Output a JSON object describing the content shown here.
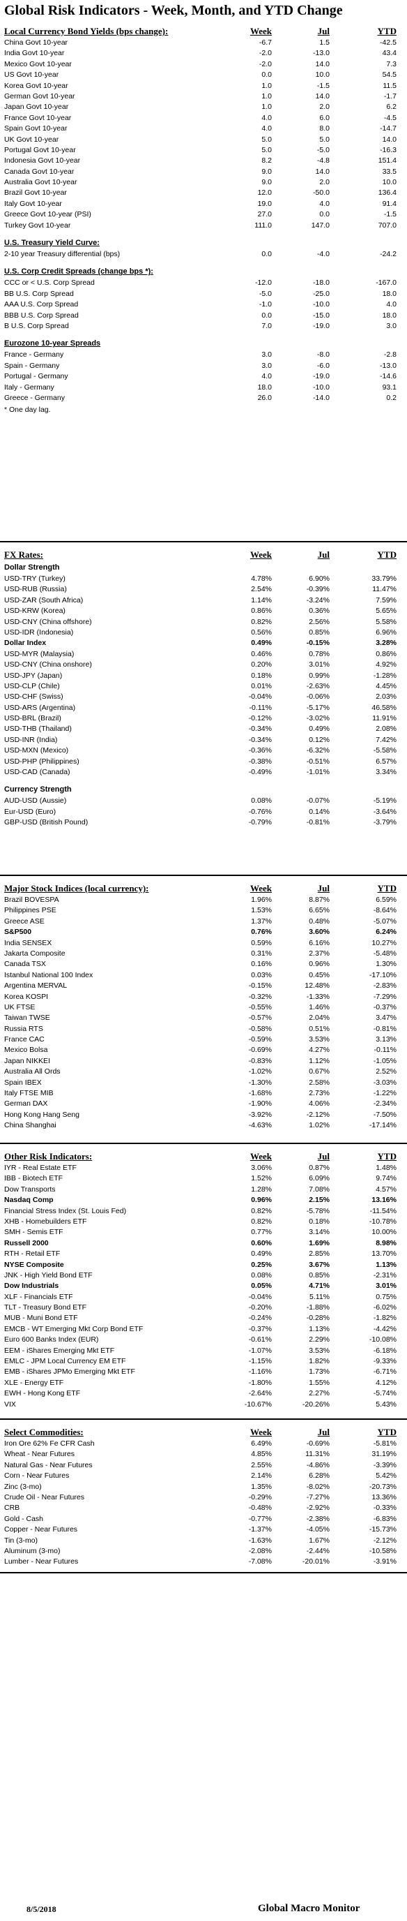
{
  "title": "Global Risk Indicators - Week, Month, and YTD Change",
  "columns": {
    "week": "Week",
    "jul": "Jul",
    "ytd": "YTD"
  },
  "bonds": {
    "heading": "Local Currency Bond Yields (bps change):",
    "rows": [
      [
        "China Govt 10-year",
        "-6.7",
        "1.5",
        "-42.5"
      ],
      [
        "India Govt 10-year",
        "-2.0",
        "-13.0",
        "43.4"
      ],
      [
        "Mexico Govt 10-year",
        "-2.0",
        "14.0",
        "7.3"
      ],
      [
        "US Govt 10-year",
        "0.0",
        "10.0",
        "54.5"
      ],
      [
        "Korea Govt 10-year",
        "1.0",
        "-1.5",
        "11.5"
      ],
      [
        "German Govt 10-year",
        "1.0",
        "14.0",
        "-1.7"
      ],
      [
        "Japan Govt 10-year",
        "1.0",
        "2.0",
        "6.2"
      ],
      [
        "France Govt 10-year",
        "4.0",
        "6.0",
        "-4.5"
      ],
      [
        "Spain Govt 10-year",
        "4.0",
        "8.0",
        "-14.7"
      ],
      [
        "UK Govt 10-year",
        "5.0",
        "5.0",
        "14.0"
      ],
      [
        "Portugal Govt 10-year",
        "5.0",
        "-5.0",
        "-16.3"
      ],
      [
        "Indonesia Govt 10-year",
        "8.2",
        "-4.8",
        "151.4"
      ],
      [
        "Canada Govt 10-year",
        "9.0",
        "14.0",
        "33.5"
      ],
      [
        "Australia Govt 10-year",
        "9.0",
        "2.0",
        "10.0"
      ],
      [
        "Brazil Govt 10-year",
        "12.0",
        "-50.0",
        "136.4"
      ],
      [
        "Italy Govt 10-year",
        "19.0",
        "4.0",
        "91.4"
      ],
      [
        "Greece Govt 10-year (PSI)",
        "27.0",
        "0.0",
        "-1.5"
      ],
      [
        "Turkey Govt 10-year",
        "111.0",
        "147.0",
        "707.0"
      ]
    ]
  },
  "curve": {
    "heading": "U.S. Treasury Yield Curve:",
    "rows": [
      [
        "2-10 year Treasury differential (bps)",
        "0.0",
        "-4.0",
        "-24.2"
      ]
    ]
  },
  "credit": {
    "heading": "U.S. Corp Credit Spreads (change bps *):",
    "rows": [
      [
        "CCC or < U.S. Corp Spread",
        "-12.0",
        "-18.0",
        "-167.0"
      ],
      [
        "BB U.S. Corp Spread",
        "-5.0",
        "-25.0",
        "18.0"
      ],
      [
        "AAA U.S. Corp Spread",
        "-1.0",
        "-10.0",
        "4.0"
      ],
      [
        "BBB U.S. Corp Spread",
        "0.0",
        "-15.0",
        "18.0"
      ],
      [
        "B U.S. Corp Spread",
        "7.0",
        "-19.0",
        "3.0"
      ]
    ]
  },
  "eurozone": {
    "heading": "Eurozone 10-year Spreads",
    "rows": [
      [
        "France - Germany",
        "3.0",
        "-8.0",
        "-2.8"
      ],
      [
        "Spain - Germany",
        "3.0",
        "-6.0",
        "-13.0"
      ],
      [
        "Portugal - Germany",
        "4.0",
        "-19.0",
        "-14.6"
      ],
      [
        "Italy - Germany",
        "18.0",
        "-10.0",
        "93.1"
      ],
      [
        "Greece - Germany",
        "26.0",
        "-14.0",
        "0.2"
      ]
    ],
    "note": "* One day lag."
  },
  "fx": {
    "heading": "FX Rates:",
    "strength_heading": "Dollar Strength",
    "rows": [
      [
        "USD-TRY (Turkey)",
        "4.78%",
        "6.90%",
        "33.79%",
        false
      ],
      [
        "USD-RUB (Russia)",
        "2.54%",
        "-0.39%",
        "11.47%",
        false
      ],
      [
        "USD-ZAR (South Africa)",
        "1.14%",
        "-3.24%",
        "7.59%",
        false
      ],
      [
        "USD-KRW (Korea)",
        "0.86%",
        "0.36%",
        "5.65%",
        false
      ],
      [
        "USD-CNY (China offshore)",
        "0.82%",
        "2.56%",
        "5.58%",
        false
      ],
      [
        "USD-IDR (Indonesia)",
        "0.56%",
        "0.85%",
        "6.96%",
        false
      ],
      [
        "Dollar Index",
        "0.49%",
        "-0.15%",
        "3.28%",
        true
      ],
      [
        "USD-MYR (Malaysia)",
        "0.46%",
        "0.78%",
        "0.86%",
        false
      ],
      [
        "USD-CNY (China onshore)",
        "0.20%",
        "3.01%",
        "4.92%",
        false
      ],
      [
        "USD-JPY (Japan)",
        "0.18%",
        "0.99%",
        "-1.28%",
        false
      ],
      [
        "USD-CLP (Chile)",
        "0.01%",
        "-2.63%",
        "4.45%",
        false
      ],
      [
        "USD-CHF (Swiss)",
        "-0.04%",
        "-0.06%",
        "2.03%",
        false
      ],
      [
        "USD-ARS (Argentina)",
        "-0.11%",
        "-5.17%",
        "46.58%",
        false
      ],
      [
        "USD-BRL (Brazil)",
        "-0.12%",
        "-3.02%",
        "11.91%",
        false
      ],
      [
        "USD-THB (Thailand)",
        "-0.34%",
        "0.49%",
        "2.08%",
        false
      ],
      [
        "USD-INR (India)",
        "-0.34%",
        "0.12%",
        "7.42%",
        false
      ],
      [
        "USD-MXN  (Mexico)",
        "-0.36%",
        "-6.32%",
        "-5.58%",
        false
      ],
      [
        "USD-PHP (Philippines)",
        "-0.38%",
        "-0.51%",
        "6.57%",
        false
      ],
      [
        "USD-CAD (Canada)",
        "-0.49%",
        "-1.01%",
        "3.34%",
        false
      ]
    ],
    "currency_heading": "Currency Strength",
    "currency_rows": [
      [
        "AUD-USD (Aussie)",
        "0.08%",
        "-0.07%",
        "-5.19%",
        false
      ],
      [
        "Eur-USD (Euro)",
        "-0.76%",
        "0.14%",
        "-3.64%",
        false
      ],
      [
        "GBP-USD (British Pound)",
        "-0.79%",
        "-0.81%",
        "-3.79%",
        false
      ]
    ]
  },
  "stocks": {
    "heading": "Major Stock Indices (local currency):",
    "rows": [
      [
        "Brazil BOVESPA",
        "1.96%",
        "8.87%",
        "6.59%",
        false
      ],
      [
        "Philippines PSE",
        "1.53%",
        "6.65%",
        "-8.64%",
        false
      ],
      [
        "Greece ASE",
        "1.37%",
        "0.48%",
        "-5.07%",
        false
      ],
      [
        "S&P500",
        "0.76%",
        "3.60%",
        "6.24%",
        true
      ],
      [
        "India SENSEX",
        "0.59%",
        "6.16%",
        "10.27%",
        false
      ],
      [
        "Jakarta Composite",
        "0.31%",
        "2.37%",
        "-5.48%",
        false
      ],
      [
        "Canada TSX",
        "0.16%",
        "0.96%",
        "1.30%",
        false
      ],
      [
        "Istanbul National 100 Index",
        "0.03%",
        "0.45%",
        "-17.10%",
        false
      ],
      [
        "Argentina MERVAL",
        "-0.15%",
        "12.48%",
        "-2.83%",
        false
      ],
      [
        "Korea KOSPI",
        "-0.32%",
        "-1.33%",
        "-7.29%",
        false
      ],
      [
        "UK FTSE",
        "-0.55%",
        "1.46%",
        "-0.37%",
        false
      ],
      [
        "Taiwan  TWSE",
        "-0.57%",
        "2.04%",
        "3.47%",
        false
      ],
      [
        "Russia RTS",
        "-0.58%",
        "0.51%",
        "-0.81%",
        false
      ],
      [
        "France CAC",
        "-0.59%",
        "3.53%",
        "3.13%",
        false
      ],
      [
        "Mexico Bolsa",
        "-0.69%",
        "4.27%",
        "-0.11%",
        false
      ],
      [
        "Japan NIKKEI",
        "-0.83%",
        "1.12%",
        "-1.05%",
        false
      ],
      [
        "Australia All Ords",
        "-1.02%",
        "0.67%",
        "2.52%",
        false
      ],
      [
        "Spain IBEX",
        "-1.30%",
        "2.58%",
        "-3.03%",
        false
      ],
      [
        "Italy FTSE MIB",
        "-1.68%",
        "2.73%",
        "-1.22%",
        false
      ],
      [
        "German DAX",
        "-1.90%",
        "4.06%",
        "-2.34%",
        false
      ],
      [
        "Hong Kong Hang Seng",
        "-3.92%",
        "-2.12%",
        "-7.50%",
        false
      ],
      [
        "China Shanghai",
        "-4.63%",
        "1.02%",
        "-17.14%",
        false
      ]
    ]
  },
  "risk": {
    "heading": "Other Risk Indicators:",
    "rows": [
      [
        "IYR - Real Estate ETF",
        "3.06%",
        "0.87%",
        "1.48%",
        false
      ],
      [
        "IBB - Biotech ETF",
        "1.52%",
        "6.09%",
        "9.74%",
        false
      ],
      [
        "Dow Transports",
        "1.28%",
        "7.08%",
        "4.57%",
        false
      ],
      [
        "Nasdaq Comp",
        "0.96%",
        "2.15%",
        "13.16%",
        true
      ],
      [
        "Financial Stress Index (St. Louis Fed)",
        "0.82%",
        "-5.78%",
        "-11.54%",
        false
      ],
      [
        "XHB - Homebuilders ETF",
        "0.82%",
        "0.18%",
        "-10.78%",
        false
      ],
      [
        "SMH - Semis ETF",
        "0.77%",
        "3.14%",
        "10.00%",
        false
      ],
      [
        "Russell 2000",
        "0.60%",
        "1.69%",
        "8.98%",
        true
      ],
      [
        "RTH - Retail ETF",
        "0.49%",
        "2.85%",
        "13.70%",
        false
      ],
      [
        "NYSE Composite",
        "0.25%",
        "3.67%",
        "1.13%",
        true
      ],
      [
        "JNK - High Yield Bond ETF",
        "0.08%",
        "0.85%",
        "-2.31%",
        false
      ],
      [
        "Dow Industrials",
        "0.05%",
        "4.71%",
        "3.01%",
        true
      ],
      [
        "XLF - Financials ETF",
        "-0.04%",
        "5.11%",
        "0.75%",
        false
      ],
      [
        "TLT - Treasury Bond ETF",
        "-0.20%",
        "-1.88%",
        "-6.02%",
        false
      ],
      [
        "MUB - Muni Bond ETF",
        "-0.24%",
        "-0.28%",
        "-1.82%",
        false
      ],
      [
        "EMCB - WT Emerging Mkt Corp Bond ETF",
        "-0.37%",
        "1.13%",
        "-4.42%",
        false
      ],
      [
        "Euro 600 Banks Index (EUR)",
        "-0.61%",
        "2.29%",
        "-10.08%",
        false
      ],
      [
        "EEM - iShares Emerging Mkt ETF",
        "-1.07%",
        "3.53%",
        "-6.18%",
        false
      ],
      [
        "EMLC - JPM Local Currency EM ETF",
        "-1.15%",
        "1.82%",
        "-9.33%",
        false
      ],
      [
        "EMB - iShares JPMo Emerging Mkt ETF",
        "-1.16%",
        "1.73%",
        "-6.71%",
        false
      ],
      [
        "XLE - Energy ETF",
        "-1.80%",
        "1.55%",
        "4.12%",
        false
      ],
      [
        "EWH - Hong Kong ETF",
        "-2.64%",
        "2.27%",
        "-5.74%",
        false
      ],
      [
        "VIX",
        "-10.67%",
        "-20.26%",
        "5.43%",
        false
      ]
    ]
  },
  "commodities": {
    "heading": "Select Commodities:",
    "rows": [
      [
        "Iron Ore 62% Fe CFR Cash",
        "6.49%",
        "-0.69%",
        "-5.81%",
        false
      ],
      [
        "Wheat - Near Futures",
        "4.85%",
        "11.31%",
        "31.19%",
        false
      ],
      [
        "Natural Gas - Near Futures",
        "2.55%",
        "-4.86%",
        "-3.39%",
        false
      ],
      [
        "Corn - Near Futures",
        "2.14%",
        "6.28%",
        "5.42%",
        false
      ],
      [
        "Zinc (3-mo)",
        "1.35%",
        "-8.02%",
        "-20.73%",
        false
      ],
      [
        "Crude Oil - Near Futures",
        "-0.29%",
        "-7.27%",
        "13.36%",
        false
      ],
      [
        "CRB",
        "-0.48%",
        "-2.92%",
        "-0.33%",
        false
      ],
      [
        "Gold - Cash",
        "-0.77%",
        "-2.38%",
        "-6.83%",
        false
      ],
      [
        "Copper - Near Futures",
        "-1.37%",
        "-4.05%",
        "-15.73%",
        false
      ],
      [
        "Tin (3-mo)",
        "-1.63%",
        "1.67%",
        "-2.12%",
        false
      ],
      [
        "Aluminum (3-mo)",
        "-2.08%",
        "-2.44%",
        "-10.58%",
        false
      ],
      [
        "Lumber - Near Futures",
        "-7.08%",
        "-20.01%",
        "-3.91%",
        false
      ]
    ]
  },
  "footer": {
    "date": "8/5/2018",
    "brand": "Global Macro Monitor"
  }
}
